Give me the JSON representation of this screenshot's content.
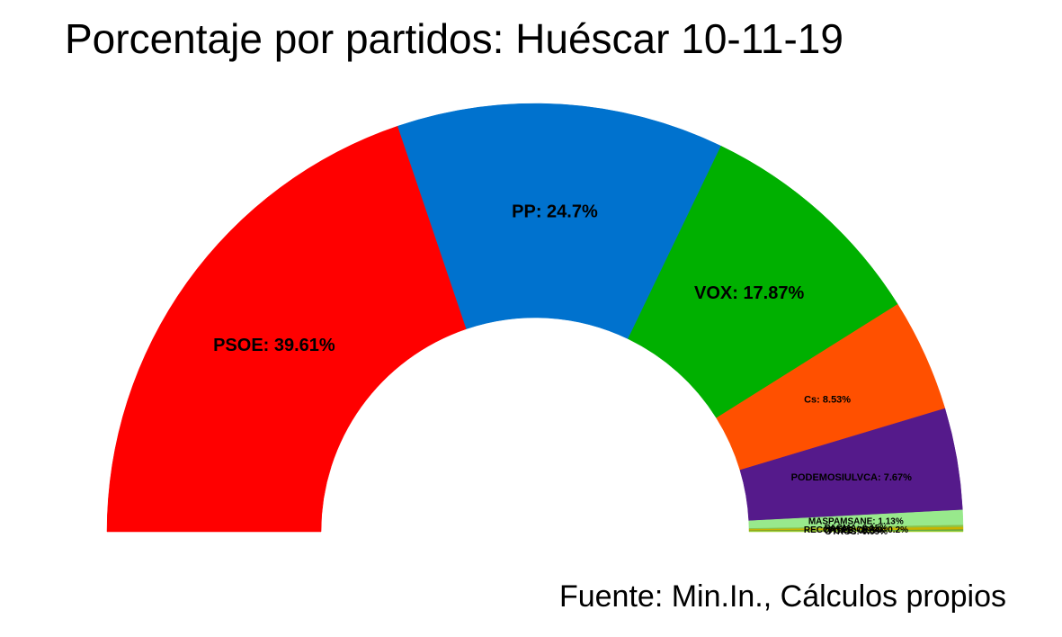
{
  "title": "Porcentaje por partidos: Huéscar 10-11-19",
  "source": "Fuente: Min.In., Cálculos propios",
  "chart_data": {
    "type": "pie",
    "variant": "half-donut",
    "title": "Porcentaje por partidos: Huéscar 10-11-19",
    "legend": "none",
    "slices": [
      {
        "label": "PSOE",
        "value": 39.61,
        "text": "PSOE: 39.61%",
        "color": "#FF0000"
      },
      {
        "label": "PP",
        "value": 24.7,
        "text": "PP: 24.7%",
        "color": "#0072CE"
      },
      {
        "label": "VOX",
        "value": 17.87,
        "text": "VOX: 17.87%",
        "color": "#00B000"
      },
      {
        "label": "Cs",
        "value": 8.53,
        "text": "Cs: 8.53%",
        "color": "#FF5000"
      },
      {
        "label": "PODEMOSIULVCA",
        "value": 7.67,
        "text": "PODEMOSIULVCA: 7.67%",
        "color": "#551A8B"
      },
      {
        "label": "MASPAMSANE",
        "value": 1.13,
        "text": "MASPAMSANE: 1.13%",
        "color": "#98E98C"
      },
      {
        "label": "PACMA",
        "value": 0.15,
        "text": "PACMA: 0.15%",
        "color": "#8BC34A"
      },
      {
        "label": "RECORTES CERO",
        "value": 0.2,
        "text": "RECORTES CERO: 0.2%",
        "color": "#C8B400"
      },
      {
        "label": "PCPE",
        "value": 0.05,
        "text": "PCPE: 0.05%",
        "color": "#2E8B57"
      },
      {
        "label": "OTROS",
        "value": 0.09,
        "text": "OTROS: 0.09%",
        "color": "#9ACD32"
      }
    ]
  }
}
